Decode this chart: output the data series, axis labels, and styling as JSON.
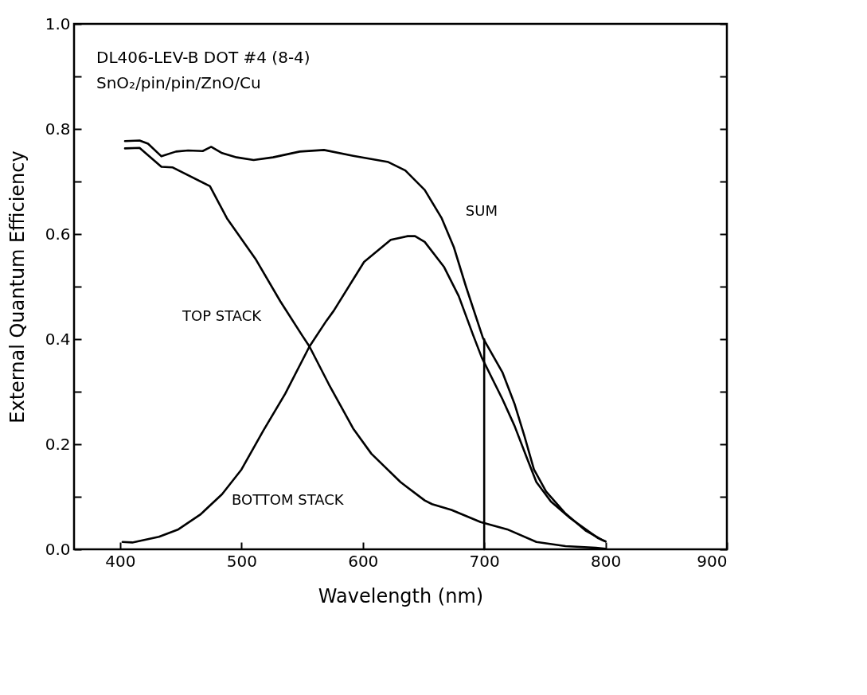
{
  "chart_data": {
    "type": "line",
    "title": "DL406-LEV-B  DOT #4 (8-4)",
    "subtitle": "SnO₂/pin/pin/ZnO/Cu",
    "xlabel": "Wavelength (nm)",
    "ylabel": "External  Quantum  Efficiency",
    "xlim": [
      362,
      900
    ],
    "xticks": [
      400,
      500,
      600,
      700,
      800,
      900
    ],
    "ylim": [
      0,
      1
    ],
    "yticks": [
      {
        "value": 0,
        "label": "0.0"
      },
      {
        "value": 0.1,
        "label": null
      },
      {
        "value": 0.2,
        "label": "0.2"
      },
      {
        "value": 0.3,
        "label": null
      },
      {
        "value": 0.4,
        "label": "0.4"
      },
      {
        "value": 0.5,
        "label": null
      },
      {
        "value": 0.6,
        "label": "0.6"
      },
      {
        "value": 0.7,
        "label": null
      },
      {
        "value": 0.8,
        "label": "0.8"
      },
      {
        "value": 0.9,
        "label": null
      },
      {
        "value": 1,
        "label": "1.0"
      }
    ],
    "grid": false,
    "series": [
      {
        "name": "SUM",
        "color": "#000000",
        "x": [
          404,
          416,
          423,
          434,
          446,
          456,
          468,
          475,
          484,
          496,
          510,
          526,
          548,
          568,
          592,
          621,
          635,
          651,
          665,
          675,
          685,
          699,
          715,
          725,
          733,
          741,
          751,
          767,
          784,
          798,
          800
        ],
        "values": [
          0.777,
          0.778,
          0.772,
          0.748,
          0.757,
          0.759,
          0.758,
          0.766,
          0.754,
          0.746,
          0.741,
          0.746,
          0.757,
          0.76,
          0.749,
          0.737,
          0.721,
          0.684,
          0.63,
          0.575,
          0.5,
          0.402,
          0.337,
          0.277,
          0.217,
          0.152,
          0.11,
          0.068,
          0.035,
          0.017,
          0.015
        ]
      },
      {
        "name": "TOP STACK",
        "color": "#000000",
        "x": [
          404,
          416,
          434,
          443,
          474,
          488,
          512,
          532,
          550,
          556,
          572,
          592,
          607,
          631,
          651,
          657,
          673,
          697,
          719,
          743,
          767,
          792,
          800
        ],
        "values": [
          0.763,
          0.764,
          0.728,
          0.727,
          0.691,
          0.63,
          0.551,
          0.472,
          0.407,
          0.386,
          0.314,
          0.23,
          0.182,
          0.128,
          0.093,
          0.086,
          0.075,
          0.052,
          0.038,
          0.014,
          0.006,
          0.003,
          0.001
        ]
      },
      {
        "name": "BOTTOM STACK",
        "color": "#000000",
        "x": [
          402,
          410,
          432,
          448,
          466,
          484,
          500,
          518,
          536,
          556,
          570,
          576,
          601,
          623,
          637,
          643,
          651,
          667,
          679,
          691,
          698,
          715,
          725,
          735,
          743,
          755,
          771,
          794,
          800
        ],
        "values": [
          0.014,
          0.013,
          0.024,
          0.038,
          0.066,
          0.105,
          0.152,
          0.226,
          0.296,
          0.386,
          0.435,
          0.454,
          0.547,
          0.589,
          0.596,
          0.596,
          0.585,
          0.537,
          0.482,
          0.407,
          0.365,
          0.286,
          0.235,
          0.175,
          0.128,
          0.091,
          0.059,
          0.021,
          0.015
        ]
      },
      {
        "color": "#000000",
        "x": [
          700,
          700
        ],
        "values": [
          0,
          0.4
        ]
      }
    ]
  }
}
